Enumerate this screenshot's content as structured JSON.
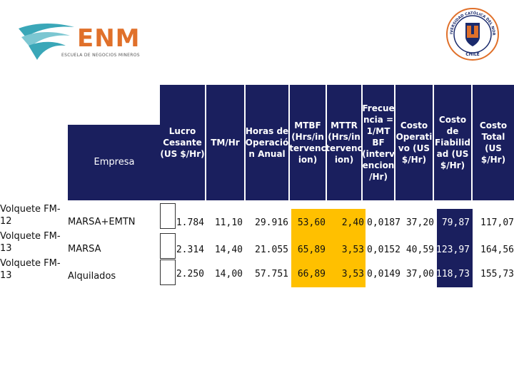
{
  "logo": {
    "brand": "ENM",
    "subtitle": "ESCUELA DE NEGOCIOS MINEROS",
    "brand_color": "#e0702a",
    "swoosh_color": "#3aa7b8"
  },
  "seal": {
    "text": "UNIVERSIDAD CATÓLICA DEL NORTE",
    "country": "CHILE",
    "ring_color": "#e0702a",
    "shield_color": "#1a2a6c"
  },
  "colors": {
    "header_bg": "#1a1f5e",
    "highlight_yellow": "#ffc000",
    "highlight_navy": "#1a1f5e"
  },
  "headers": {
    "empresa": "Empresa",
    "lucro": "Lucro\nCesante\n(US $/Hr)",
    "tm_hr": "TM/Hr",
    "horas": "Horas de\nOperació\nn Anual",
    "mtbf": "MTBF\n(Hrs/in\ntervenc\nion)",
    "mttr": "MTTR\n(Hrs/in\ntervenc\nion)",
    "frecuencia": "Frecue\nncia =\n1/MT\nBF\n(interv\nencion\n/Hr)",
    "costo_op": "Costo\nOperati\nvo (US\n$/Hr)",
    "costo_fiab": "Costo\nde\nFiabilid\nad (US\n$/Hr)",
    "costo_total": "Costo\nTotal (US\n$/Hr)"
  },
  "rows": [
    {
      "equipo": "Volquete FM-\n12",
      "empresa": "MARSA+EMTN",
      "tm_hr": "1.784",
      "horas": "11,10",
      "mtbf_val": "29.916",
      "mttr": "53,60",
      "frecuencia": "2,40",
      "freq_extra": "0,0187",
      "costo_op": "37,20",
      "costo_fiab": "79,87",
      "costo_total": "117,07"
    },
    {
      "equipo": "Volquete FM-\n13",
      "empresa": "MARSA",
      "tm_hr": "2.314",
      "horas": "14,40",
      "mtbf_val": "21.055",
      "mttr": "65,89",
      "frecuencia": "3,53",
      "freq_extra": "0,0152",
      "costo_op": "40,59",
      "costo_fiab": "123,97",
      "costo_total": "164,56"
    },
    {
      "equipo": "Volquete FM-\n13",
      "empresa": "Alquilados",
      "tm_hr": "2.250",
      "horas": "14,00",
      "mtbf_val": "57.751",
      "mttr": "66,89",
      "frecuencia": "3,53",
      "freq_extra": "0,0149",
      "costo_op": "37,00",
      "costo_fiab": "118,73",
      "costo_total": "155,73"
    }
  ]
}
